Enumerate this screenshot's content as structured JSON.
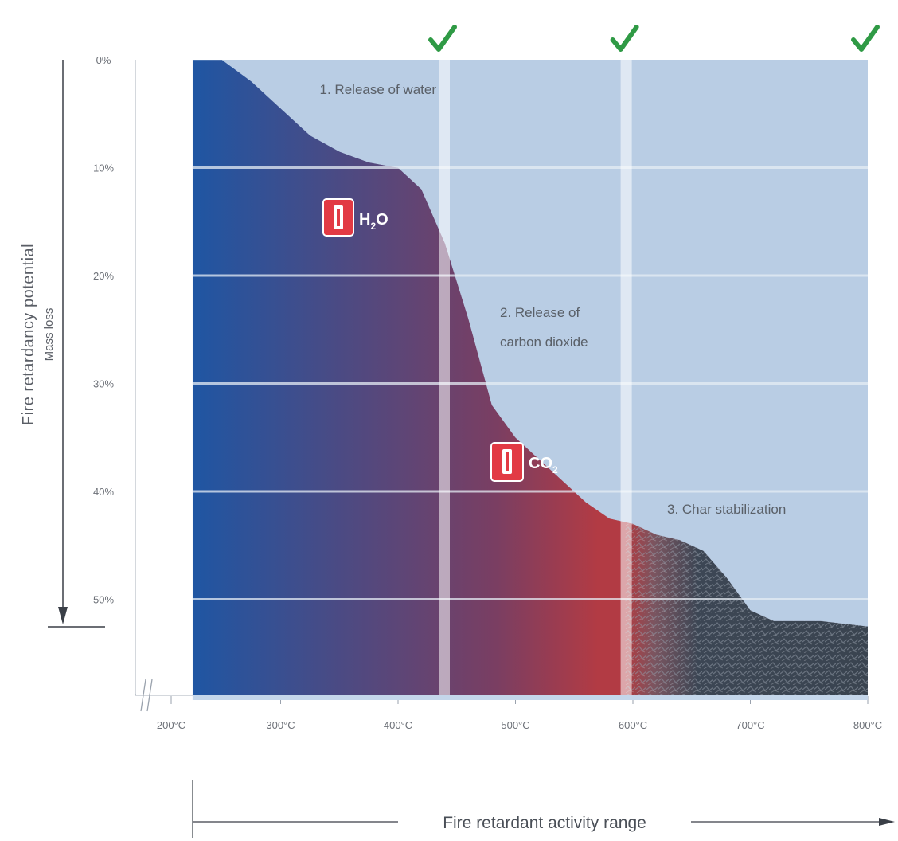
{
  "chart_data": {
    "type": "area",
    "title": "",
    "ylabel": "Fire retardancy potential",
    "ylabel_sub": "Mass loss",
    "xlabel": "Fire retardant activity range",
    "x_ticks": [
      {
        "value": 200,
        "label": "200°C"
      },
      {
        "value": 300,
        "label": "300°C"
      },
      {
        "value": 400,
        "label": "400°C"
      },
      {
        "value": 500,
        "label": "500°C"
      },
      {
        "value": 600,
        "label": "600°C"
      },
      {
        "value": 700,
        "label": "700°C"
      },
      {
        "value": 800,
        "label": "800°C"
      }
    ],
    "y_ticks": [
      {
        "value": 0,
        "label": "0%"
      },
      {
        "value": 10,
        "label": "10%"
      },
      {
        "value": 20,
        "label": "20%"
      },
      {
        "value": 30,
        "label": "30%"
      },
      {
        "value": 40,
        "label": "40%"
      },
      {
        "value": 50,
        "label": "50%"
      }
    ],
    "xlim": [
      200,
      800
    ],
    "ylim": [
      0,
      59
    ],
    "y_inverted": true,
    "mass_loss_curve": [
      {
        "x": 225,
        "y": 0
      },
      {
        "x": 250,
        "y": 0
      },
      {
        "x": 275,
        "y": 2
      },
      {
        "x": 300,
        "y": 4.5
      },
      {
        "x": 325,
        "y": 7
      },
      {
        "x": 350,
        "y": 8.5
      },
      {
        "x": 375,
        "y": 9.5
      },
      {
        "x": 400,
        "y": 10
      },
      {
        "x": 420,
        "y": 12
      },
      {
        "x": 440,
        "y": 17
      },
      {
        "x": 460,
        "y": 24
      },
      {
        "x": 480,
        "y": 32
      },
      {
        "x": 500,
        "y": 35
      },
      {
        "x": 520,
        "y": 37
      },
      {
        "x": 540,
        "y": 39
      },
      {
        "x": 560,
        "y": 41
      },
      {
        "x": 580,
        "y": 42.5
      },
      {
        "x": 600,
        "y": 43
      },
      {
        "x": 620,
        "y": 44
      },
      {
        "x": 640,
        "y": 44.5
      },
      {
        "x": 660,
        "y": 45.5
      },
      {
        "x": 680,
        "y": 48
      },
      {
        "x": 700,
        "y": 51
      },
      {
        "x": 720,
        "y": 52
      },
      {
        "x": 760,
        "y": 52
      },
      {
        "x": 800,
        "y": 52.5
      }
    ],
    "stage_boundaries": [
      440,
      595,
      800
    ],
    "annotations": [
      {
        "id": "stage1",
        "text": "1. Release of water"
      },
      {
        "id": "stage2",
        "lines": [
          "2. Release of",
          "carbon dioxide"
        ]
      },
      {
        "id": "stage3",
        "text": "3. Char stabilization"
      }
    ],
    "gases": [
      {
        "id": "h2o",
        "main": "H",
        "sub": "2",
        "tail": "O"
      },
      {
        "id": "co2",
        "main": "CO",
        "sub": "2",
        "tail": ""
      }
    ],
    "grid": true,
    "colors": {
      "background_panel": "#b9cde4",
      "area_left": "#1f56a3",
      "area_mid": "#8e3a59",
      "area_right": "#b33a40",
      "char": "#3a4450",
      "gridline": "#e6edf5",
      "checkmark": "#2f9a45",
      "gas_box": "#e23a44",
      "stage_separator": "#ffffff"
    }
  }
}
